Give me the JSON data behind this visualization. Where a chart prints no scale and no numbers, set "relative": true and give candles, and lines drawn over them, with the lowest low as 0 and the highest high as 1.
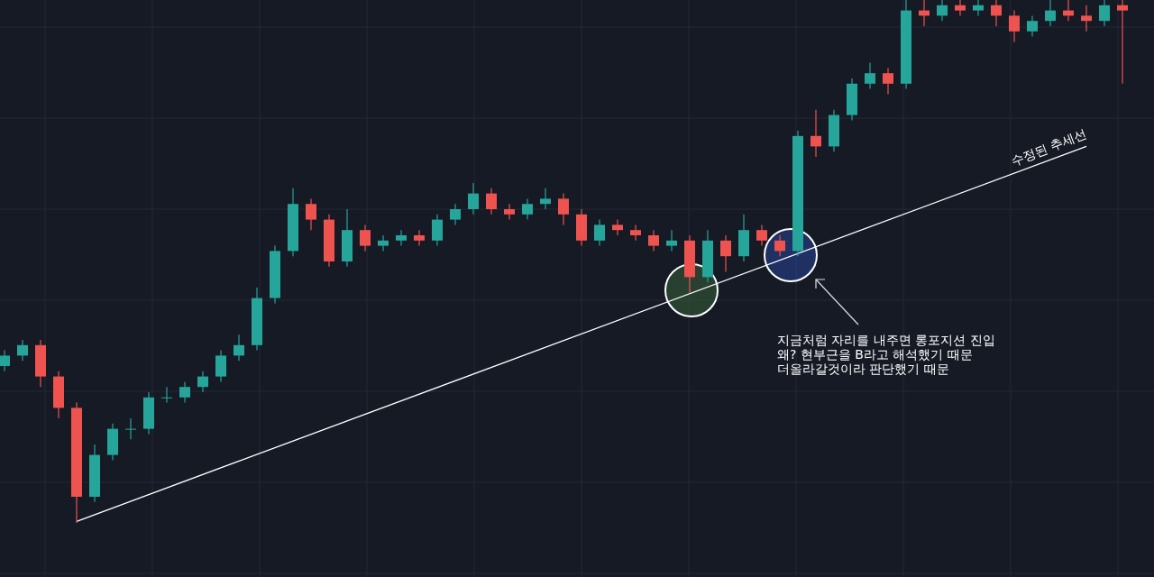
{
  "chart_data": {
    "type": "candlestick",
    "relative": true,
    "grid": true,
    "categories": [
      null,
      null,
      null,
      null,
      null,
      null,
      null,
      null,
      null,
      null,
      null,
      null,
      null,
      null,
      null,
      null,
      null,
      null,
      null,
      null,
      null,
      null,
      null,
      null,
      null,
      null,
      null,
      null,
      null,
      null,
      null,
      null,
      null,
      null,
      null,
      null,
      null,
      null,
      null,
      null,
      null,
      null,
      null,
      null,
      null,
      null,
      null,
      null,
      null,
      null,
      null,
      null,
      null,
      null,
      null,
      null,
      null,
      null,
      null,
      null,
      null,
      null,
      null
    ],
    "ohlc": [
      [
        0.3,
        0.33,
        0.29,
        0.32
      ],
      [
        0.32,
        0.35,
        0.31,
        0.34
      ],
      [
        0.34,
        0.35,
        0.26,
        0.28
      ],
      [
        0.28,
        0.29,
        0.2,
        0.22
      ],
      [
        0.22,
        0.23,
        0.0,
        0.05
      ],
      [
        0.05,
        0.15,
        0.04,
        0.13
      ],
      [
        0.13,
        0.19,
        0.12,
        0.18
      ],
      [
        0.18,
        0.2,
        0.16,
        0.18
      ],
      [
        0.18,
        0.25,
        0.17,
        0.24
      ],
      [
        0.24,
        0.26,
        0.23,
        0.24
      ],
      [
        0.24,
        0.27,
        0.23,
        0.26
      ],
      [
        0.26,
        0.29,
        0.25,
        0.28
      ],
      [
        0.28,
        0.33,
        0.27,
        0.32
      ],
      [
        0.32,
        0.36,
        0.31,
        0.34
      ],
      [
        0.34,
        0.45,
        0.33,
        0.43
      ],
      [
        0.43,
        0.53,
        0.42,
        0.52
      ],
      [
        0.52,
        0.64,
        0.51,
        0.61
      ],
      [
        0.61,
        0.62,
        0.56,
        0.58
      ],
      [
        0.58,
        0.59,
        0.49,
        0.5
      ],
      [
        0.5,
        0.6,
        0.49,
        0.56
      ],
      [
        0.56,
        0.57,
        0.52,
        0.53
      ],
      [
        0.53,
        0.55,
        0.52,
        0.54
      ],
      [
        0.54,
        0.56,
        0.53,
        0.55
      ],
      [
        0.55,
        0.56,
        0.53,
        0.54
      ],
      [
        0.54,
        0.59,
        0.53,
        0.58
      ],
      [
        0.58,
        0.61,
        0.57,
        0.6
      ],
      [
        0.6,
        0.65,
        0.59,
        0.63
      ],
      [
        0.63,
        0.64,
        0.59,
        0.6
      ],
      [
        0.6,
        0.61,
        0.58,
        0.59
      ],
      [
        0.59,
        0.62,
        0.58,
        0.61
      ],
      [
        0.61,
        0.64,
        0.6,
        0.62
      ],
      [
        0.62,
        0.63,
        0.57,
        0.59
      ],
      [
        0.59,
        0.6,
        0.53,
        0.54
      ],
      [
        0.54,
        0.58,
        0.53,
        0.57
      ],
      [
        0.57,
        0.58,
        0.55,
        0.56
      ],
      [
        0.56,
        0.57,
        0.54,
        0.55
      ],
      [
        0.55,
        0.56,
        0.52,
        0.53
      ],
      [
        0.53,
        0.56,
        0.52,
        0.54
      ],
      [
        0.54,
        0.55,
        0.44,
        0.47
      ],
      [
        0.47,
        0.56,
        0.46,
        0.54
      ],
      [
        0.54,
        0.55,
        0.48,
        0.51
      ],
      [
        0.51,
        0.59,
        0.5,
        0.56
      ],
      [
        0.56,
        0.57,
        0.53,
        0.54
      ],
      [
        0.54,
        0.55,
        0.51,
        0.52
      ],
      [
        0.52,
        0.75,
        0.51,
        0.74
      ],
      [
        0.74,
        0.79,
        0.7,
        0.72
      ],
      [
        0.72,
        0.79,
        0.71,
        0.78
      ],
      [
        0.78,
        0.85,
        0.77,
        0.84
      ],
      [
        0.84,
        0.88,
        0.83,
        0.86
      ],
      [
        0.86,
        0.87,
        0.82,
        0.84
      ],
      [
        0.84,
        1,
        0.83,
        0.98
      ],
      [
        0.98,
        1,
        0.95,
        0.97
      ],
      [
        0.97,
        1,
        0.96,
        0.99
      ],
      [
        0.99,
        1,
        0.97,
        0.98
      ],
      [
        0.98,
        1,
        0.97,
        0.99
      ],
      [
        0.99,
        1,
        0.95,
        0.97
      ],
      [
        0.97,
        0.98,
        0.92,
        0.94
      ],
      [
        0.94,
        0.97,
        0.93,
        0.96
      ],
      [
        0.96,
        1,
        0.95,
        0.98
      ],
      [
        0.98,
        1,
        0.96,
        0.97
      ],
      [
        0.97,
        0.99,
        0.94,
        0.96
      ],
      [
        0.96,
        1,
        0.95,
        0.99
      ],
      [
        0.99,
        1,
        0.84,
        0.98
      ]
    ],
    "series": [
      {
        "type": "line",
        "color": "#ffffff",
        "values": [
          null,
          null,
          null,
          null,
          0.003,
          null,
          null,
          null,
          null,
          null,
          null,
          null,
          null,
          null,
          null,
          null,
          null,
          null,
          null,
          null,
          null,
          null,
          null,
          null,
          null,
          null,
          null,
          null,
          null,
          null,
          null,
          null,
          null,
          null,
          null,
          null,
          null,
          null,
          null,
          null,
          null,
          null,
          null,
          null,
          null,
          null,
          null,
          null,
          null,
          null,
          null,
          null,
          null,
          null,
          null,
          null,
          null,
          null,
          null,
          null,
          0.72,
          null,
          null
        ]
      }
    ],
    "annotations": [
      "수정된 추세선",
      "지금처럼 자리를 내주면 롱포지션 진입\n왜? 현부근을 B라고 해석했기 때문\n더올라갈것이라 판단했기 때문"
    ]
  }
}
